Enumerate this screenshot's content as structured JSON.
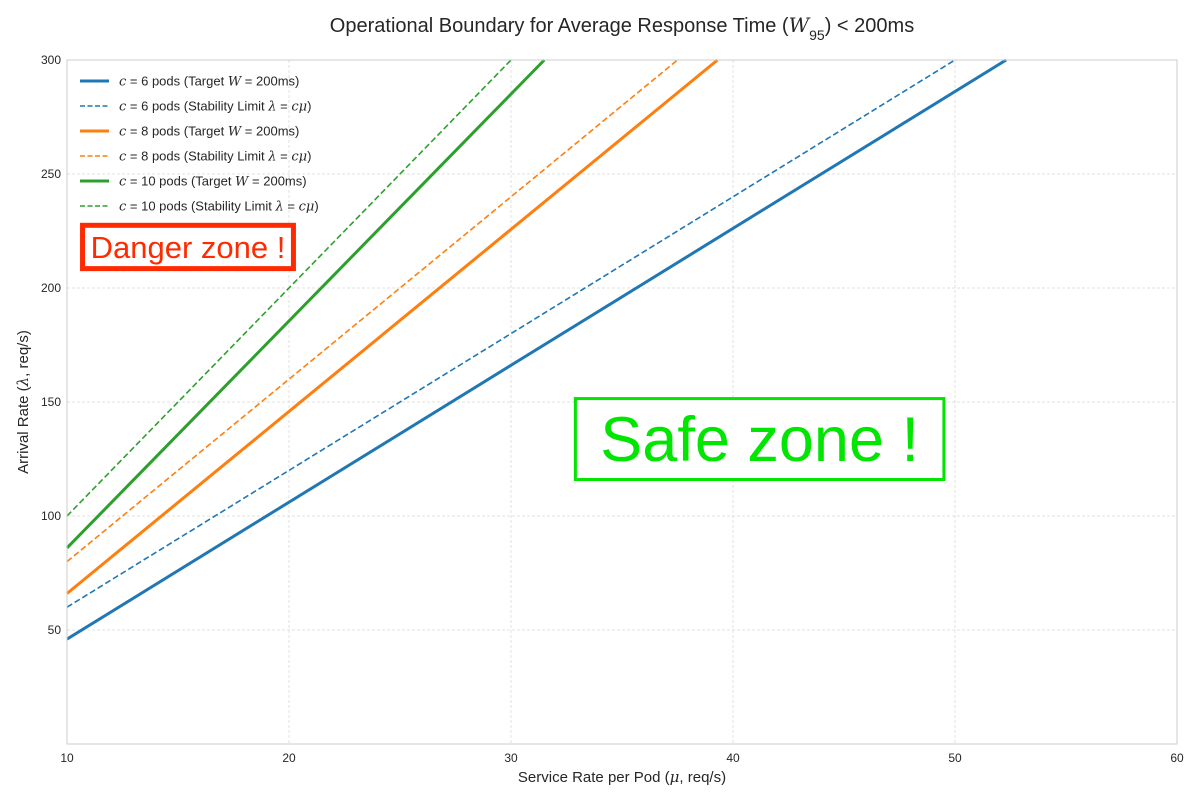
{
  "chart_data": {
    "type": "line",
    "title_parts": {
      "before": "Operational Boundary for Average Response Time (",
      "symbol": "W",
      "subscript": "95",
      "after": ") < 200ms"
    },
    "xlabel_parts": {
      "before": "Service Rate per Pod (",
      "symbol": "μ",
      "after": ", req/s)"
    },
    "ylabel_parts": {
      "before": "Arrival Rate (",
      "symbol": "λ",
      "after": ", req/s)"
    },
    "xlim": [
      10,
      60
    ],
    "ylim": [
      0,
      300
    ],
    "xticks": [
      10,
      20,
      30,
      40,
      50,
      60
    ],
    "yticks": [
      50,
      100,
      150,
      200,
      250,
      300
    ],
    "grid": true,
    "legend_position": "top-left",
    "series": [
      {
        "legend": {
          "c": "c",
          "eq": " = 6 pods (Target ",
          "w": "W",
          "rest": " = 200ms)"
        },
        "color": "#1f77b4",
        "style": "solid",
        "x": [
          10,
          52.3
        ],
        "y": [
          46,
          300
        ]
      },
      {
        "legend": {
          "c": "c",
          "eq": " = 6 pods (Stability Limit ",
          "lam": "λ",
          "mid": " = ",
          "cmu": "cμ",
          "end": ")"
        },
        "color": "#1f77b4",
        "style": "dashed",
        "x": [
          10,
          50
        ],
        "y": [
          60,
          300
        ]
      },
      {
        "legend": {
          "c": "c",
          "eq": " = 8 pods (Target ",
          "w": "W",
          "rest": " = 200ms)"
        },
        "color": "#ff7f0e",
        "style": "solid",
        "x": [
          10,
          39.3
        ],
        "y": [
          66,
          300
        ]
      },
      {
        "legend": {
          "c": "c",
          "eq": " = 8 pods (Stability Limit ",
          "lam": "λ",
          "mid": " = ",
          "cmu": "cμ",
          "end": ")"
        },
        "color": "#ff7f0e",
        "style": "dashed",
        "x": [
          10,
          37.5
        ],
        "y": [
          80,
          300
        ]
      },
      {
        "legend": {
          "c": "c",
          "eq": " = 10 pods (Target ",
          "w": "W",
          "rest": " = 200ms)"
        },
        "color": "#2ca02c",
        "style": "solid",
        "x": [
          10,
          31.5
        ],
        "y": [
          86,
          300
        ]
      },
      {
        "legend": {
          "c": "c",
          "eq": " = 10 pods (Stability Limit ",
          "lam": "λ",
          "mid": " = ",
          "cmu": "cμ",
          "end": ")"
        },
        "color": "#2ca02c",
        "style": "dashed",
        "x": [
          10,
          30
        ],
        "y": [
          100,
          300
        ]
      }
    ],
    "annotations": [
      {
        "text": "Danger zone !",
        "color": "#ff2a00",
        "x": 10.7,
        "y": 208.5,
        "x2": 20.2,
        "y2": 227.5
      },
      {
        "text": "Safe zone !",
        "color": "#00e600",
        "x": 32.9,
        "y": 116,
        "x2": 49.5,
        "y2": 151.5
      }
    ]
  }
}
